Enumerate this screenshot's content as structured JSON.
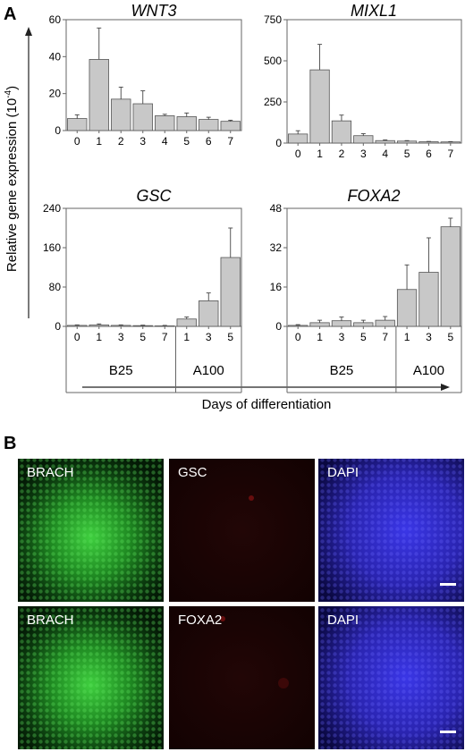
{
  "panels": {
    "a": "A",
    "b": "B"
  },
  "axes": {
    "ylabel": "Relative gene expression (10",
    "ylabel_exp": "-4",
    "ylabel_close": ")",
    "xlabel": "Days of differentiation"
  },
  "colors": {
    "bar": "#c8c8c8",
    "bar_stroke": "#555555",
    "axis": "#666666",
    "green": "#38c238",
    "red": "#5a0a0a",
    "blue": "#3a32e0"
  },
  "chart_data": [
    {
      "type": "bar",
      "title": "WNT3",
      "categories": [
        "0",
        "1",
        "2",
        "3",
        "4",
        "5",
        "6",
        "7"
      ],
      "values": [
        6.5,
        38.5,
        17,
        14.5,
        8,
        7.5,
        6,
        5
      ],
      "errors": [
        2,
        17,
        6.5,
        7,
        0.8,
        2,
        1.2,
        0.6
      ],
      "ylim": [
        0,
        60
      ],
      "yticks": [
        "0",
        "20",
        "40",
        "60"
      ]
    },
    {
      "type": "bar",
      "title": "MIXL1",
      "categories": [
        "0",
        "1",
        "2",
        "3",
        "4",
        "5",
        "6",
        "7"
      ],
      "values": [
        55,
        445,
        135,
        45,
        15,
        12,
        8,
        7
      ],
      "errors": [
        20,
        155,
        35,
        12,
        4,
        3,
        2,
        2
      ],
      "ylim": [
        0,
        750
      ],
      "yticks": [
        "0",
        "250",
        "500",
        "750"
      ]
    },
    {
      "type": "bar",
      "title": "GSC",
      "categories": [
        "0",
        "1",
        "3",
        "5",
        "7",
        "1",
        "3",
        "5"
      ],
      "groups": [
        {
          "label": "B25",
          "count": 5
        },
        {
          "label": "A100",
          "count": 3
        }
      ],
      "values": [
        2,
        3,
        2,
        1.5,
        1,
        15,
        52,
        140
      ],
      "errors": [
        1,
        2,
        1,
        1,
        1,
        4,
        16,
        60
      ],
      "ylim": [
        0,
        240
      ],
      "yticks": [
        "0",
        "80",
        "160",
        "240"
      ]
    },
    {
      "type": "bar",
      "title": "FOXA2",
      "categories": [
        "0",
        "1",
        "3",
        "5",
        "7",
        "1",
        "3",
        "5"
      ],
      "groups": [
        {
          "label": "B25",
          "count": 5
        },
        {
          "label": "A100",
          "count": 3
        }
      ],
      "values": [
        0.4,
        1.5,
        2.3,
        1.5,
        2.5,
        15,
        22,
        40.5
      ],
      "errors": [
        0.3,
        1,
        1.5,
        1,
        1.5,
        10,
        14,
        3.5
      ],
      "ylim": [
        0,
        48
      ],
      "yticks": [
        "0",
        "16",
        "32",
        "48"
      ]
    }
  ],
  "micrographs": {
    "row1": [
      "BRACH",
      "GSC",
      "DAPI"
    ],
    "row2": [
      "BRACH",
      "FOXA2",
      "DAPI"
    ]
  }
}
